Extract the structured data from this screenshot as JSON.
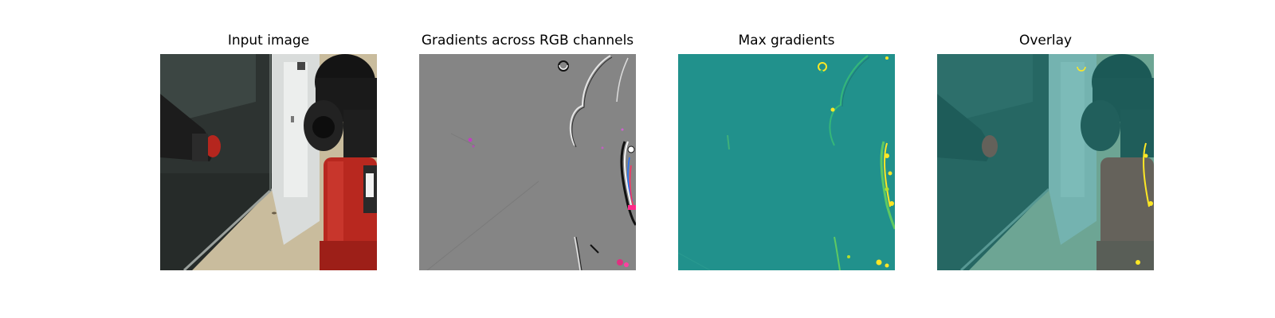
{
  "panels": [
    {
      "title": "Input image"
    },
    {
      "title": "Gradients across RGB channels"
    },
    {
      "title": "Max gradients"
    },
    {
      "title": "Overlay"
    }
  ],
  "colors": {
    "gradient_background": "#858585",
    "max_gradient_background": "#21918c",
    "highlight_yellow": "#fde725"
  }
}
